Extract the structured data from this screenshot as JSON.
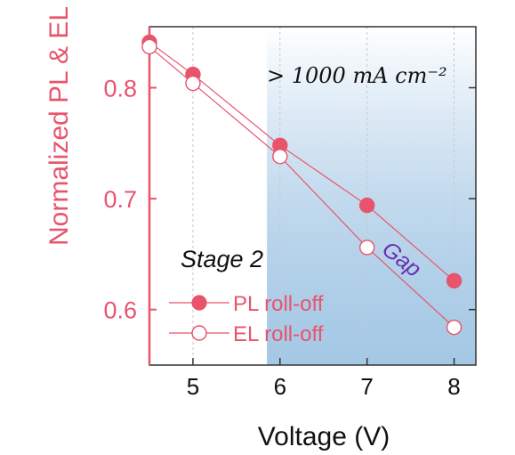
{
  "chart_data": {
    "type": "line",
    "xlabel": "Voltage (V)",
    "ylabel": "Normalized PL & EL",
    "xlim": [
      4.5,
      8.25
    ],
    "ylim": [
      0.55,
      0.855
    ],
    "xticks": [
      5,
      6,
      7,
      8
    ],
    "yticks": [
      0.6,
      0.7,
      0.8
    ],
    "x_tick_labels": [
      "5",
      "6",
      "7",
      "8"
    ],
    "y_tick_labels": [
      "0.6",
      "0.7",
      "0.8"
    ],
    "grid": "vertical dashed at x ticks",
    "series": [
      {
        "name": "PL roll-off",
        "marker": "filled-circle",
        "color": "#e8546b",
        "x": [
          4.5,
          5,
          6,
          7,
          8
        ],
        "values": [
          0.841,
          0.812,
          0.748,
          0.694,
          0.626
        ]
      },
      {
        "name": "EL roll-off",
        "marker": "open-circle",
        "color": "#e8546b",
        "x": [
          4.5,
          5,
          6,
          7,
          8
        ],
        "values": [
          0.837,
          0.804,
          0.738,
          0.656,
          0.584
        ]
      }
    ],
    "shaded_region": {
      "x_from": 5.85,
      "x_to": 8.25,
      "label": "> 1000 mA cm⁻²"
    },
    "annotations": {
      "stage": "Stage 2",
      "gap": "Gap"
    },
    "legend": "bottom-left"
  },
  "colors": {
    "accent": "#e8546b",
    "axis_left": "#e8546b",
    "gap_text": "#6a2fb0",
    "shade": "#5b9bd0"
  }
}
